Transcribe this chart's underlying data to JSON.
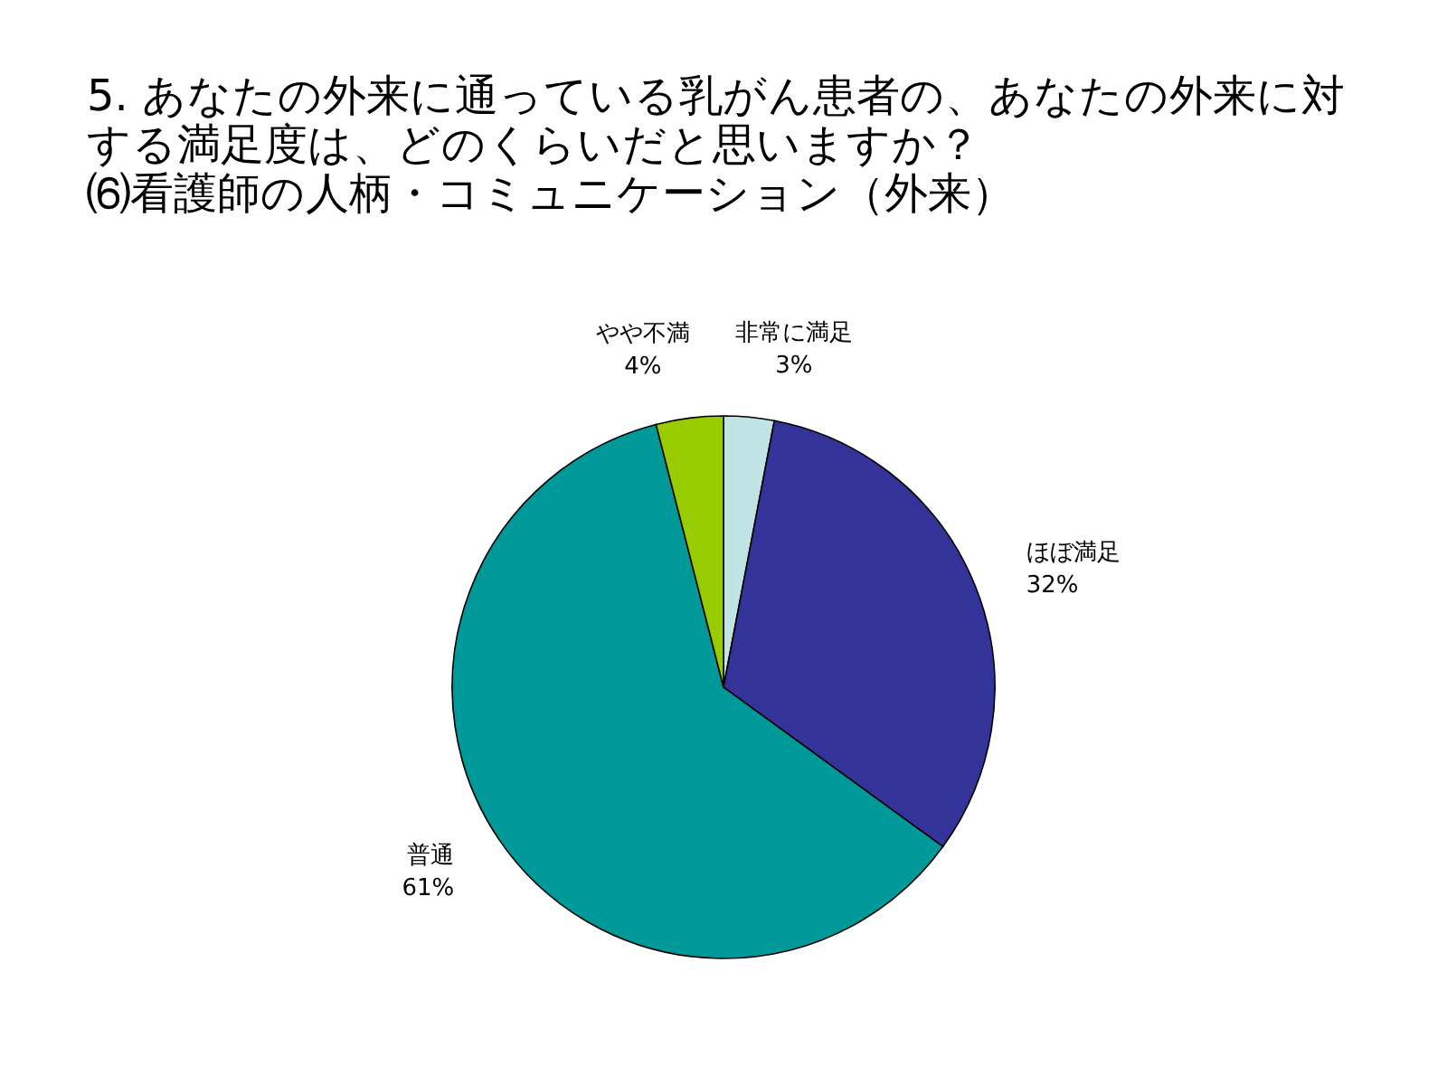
{
  "chart_data": {
    "type": "pie",
    "title": "5. あなたの外来に通っている乳がん患者の、あなたの外来に対する満足度は、どのくらいだと思いますか？",
    "subtitle": "⑹看護師の人柄・コミュニケーション（外来）",
    "categories": [
      "非常に満足",
      "ほぼ満足",
      "普通",
      "やや不満"
    ],
    "values": [
      3,
      32,
      61,
      4
    ],
    "value_labels": [
      "3%",
      "32%",
      "61%",
      "4%"
    ],
    "colors": [
      "#c0e4e4",
      "#333399",
      "#009999",
      "#99cc00"
    ]
  }
}
